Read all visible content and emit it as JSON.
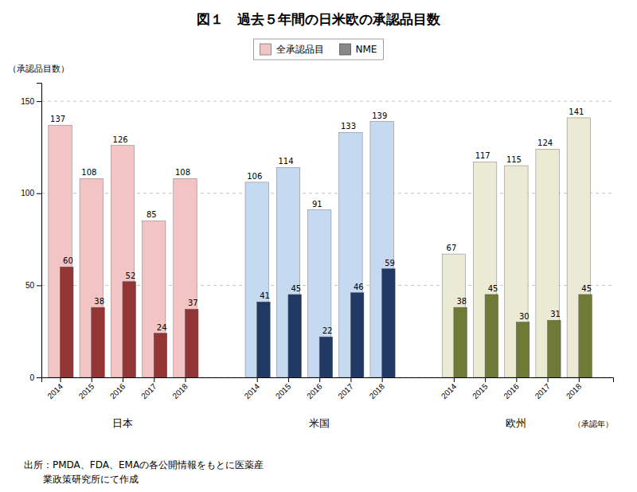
{
  "chart_data": {
    "type": "bar",
    "title": "図１　過去５年間の日米欧の承認品目数",
    "y_label": "（承認品目数）",
    "x_label": "（承認年）",
    "groups": [
      "日本",
      "米国",
      "欧州"
    ],
    "categories": [
      "2014",
      "2015",
      "2016",
      "2017",
      "2018",
      "2014",
      "2015",
      "2016",
      "2017",
      "2018",
      "2014",
      "2015",
      "2016",
      "2017",
      "2018"
    ],
    "series": [
      {
        "name": "全承認品目",
        "color": "#F2C4C4",
        "colors": [
          "#F2C4C4",
          "#F2C4C4",
          "#F2C4C4",
          "#F2C4C4",
          "#F2C4C4",
          "#C5D9F1",
          "#C5D9F1",
          "#C5D9F1",
          "#C5D9F1",
          "#C5D9F1",
          "#EBEAD5",
          "#EBEAD5",
          "#EBEAD5",
          "#EBEAD5",
          "#EBEAD5"
        ],
        "values": [
          137,
          108,
          126,
          85,
          108,
          106,
          114,
          91,
          133,
          139,
          67,
          117,
          115,
          124,
          141
        ]
      },
      {
        "name": "NME",
        "color": "#888888",
        "colors": [
          "#943535",
          "#943535",
          "#943535",
          "#943535",
          "#943535",
          "#1F3864",
          "#1F3864",
          "#1F3864",
          "#1F3864",
          "#1F3864",
          "#6E7A35",
          "#6E7A35",
          "#6E7A35",
          "#6E7A35",
          "#6E7A35"
        ],
        "values": [
          60,
          38,
          52,
          24,
          37,
          41,
          45,
          22,
          46,
          59,
          38,
          45,
          30,
          31,
          45
        ]
      }
    ],
    "ylim": [
      0,
      160
    ],
    "yticks": [
      0,
      50,
      100,
      150
    ],
    "grid": true,
    "data_labels": true,
    "annotations": [
      "出所：PMDA、FDA、EMAの各公開情報をもとに医薬産",
      "　　業政策研究所にて作成"
    ]
  }
}
